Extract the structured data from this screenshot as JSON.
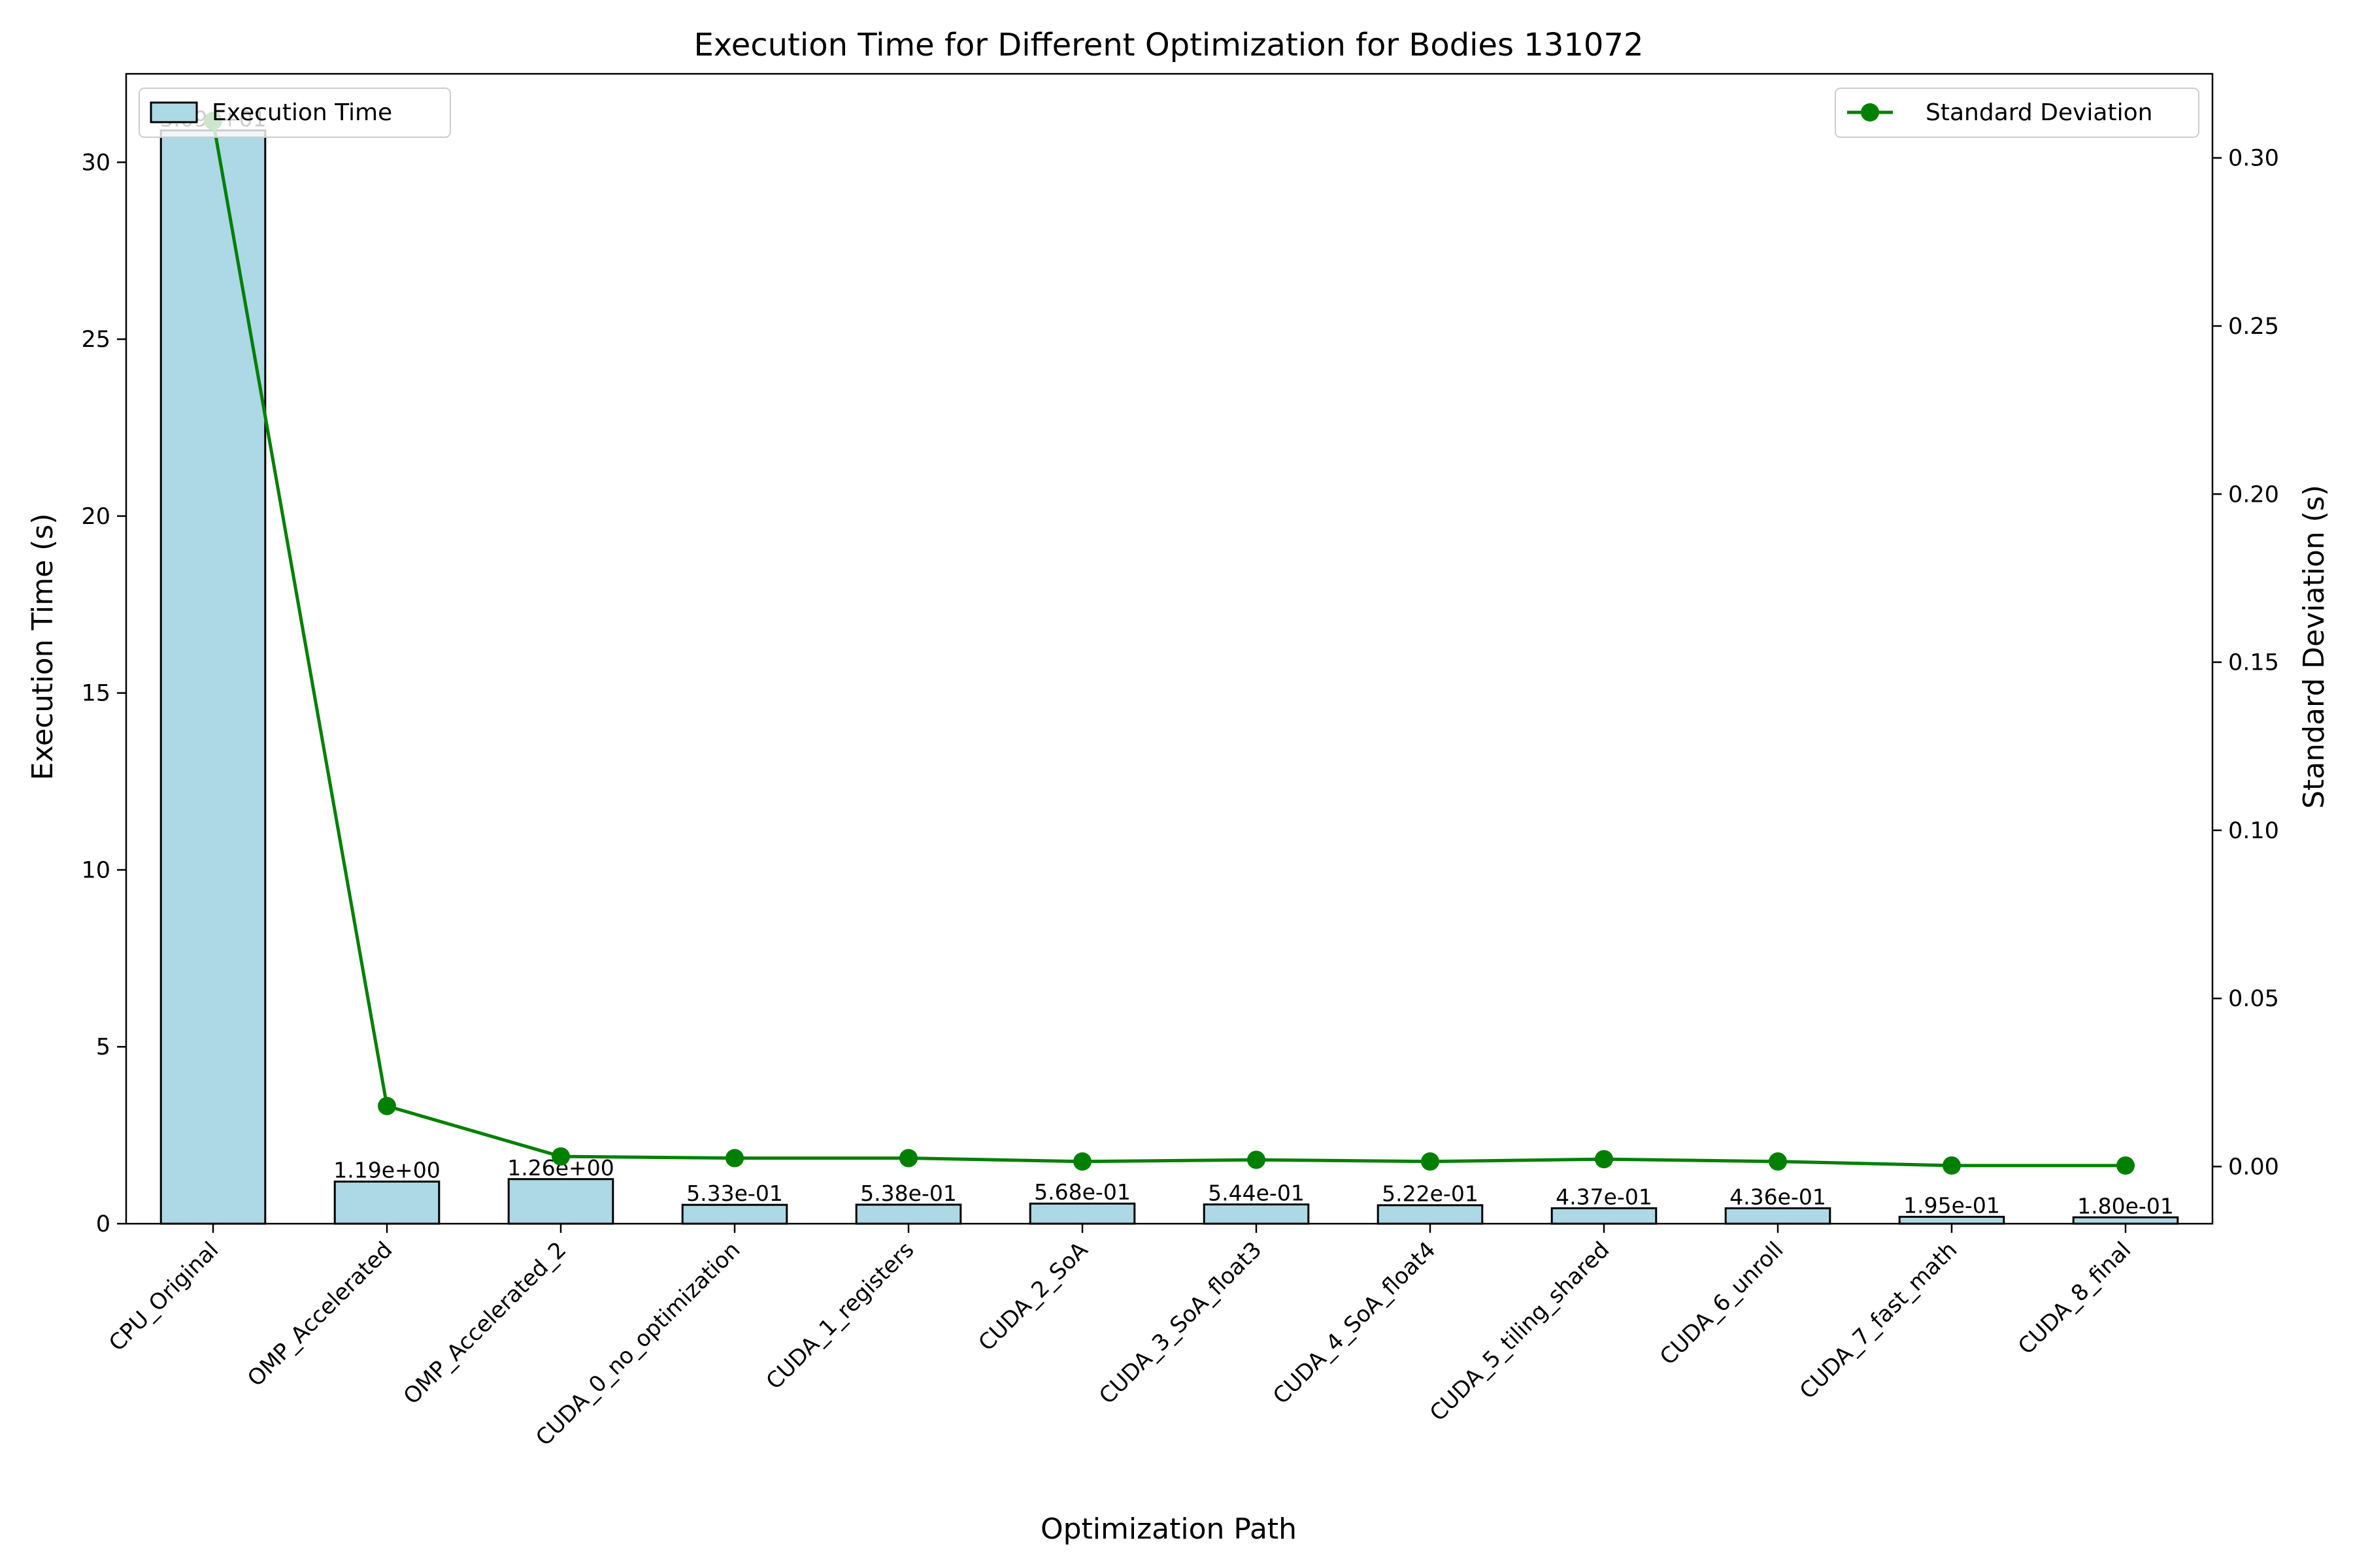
{
  "chart_data": {
    "type": "bar",
    "title": "Execution Time for Different Optimization for Bodies 131072",
    "xlabel": "Optimization Path",
    "ylabel": "Execution Time (s)",
    "y2label": "Standard Deviation (s)",
    "categories": [
      "CPU_Original",
      "OMP_Accelerated",
      "OMP_Accelerated_2",
      "CUDA_0_no_optimization",
      "CUDA_1_registers",
      "CUDA_2_SoA",
      "CUDA_3_SoA_float3",
      "CUDA_4_SoA_float4",
      "CUDA_5_tiling_shared",
      "CUDA_6_unroll",
      "CUDA_7_fast_math",
      "CUDA_8_final"
    ],
    "series": [
      {
        "name": "Execution Time",
        "type": "bar",
        "axis": "left",
        "values": [
          30.9,
          1.19,
          1.26,
          0.533,
          0.538,
          0.568,
          0.544,
          0.522,
          0.437,
          0.436,
          0.195,
          0.18
        ],
        "labels": [
          "3.09e+01",
          "1.19e+00",
          "1.26e+00",
          "5.33e-01",
          "5.38e-01",
          "5.68e-01",
          "5.44e-01",
          "5.22e-01",
          "4.37e-01",
          "4.36e-01",
          "1.95e-01",
          "1.80e-01"
        ],
        "color": "#add8e6",
        "edgecolor": "#000000"
      },
      {
        "name": "Standard Deviation",
        "type": "line",
        "axis": "right",
        "values": [
          0.311,
          0.018,
          0.003,
          0.0025,
          0.0025,
          0.0015,
          0.002,
          0.0015,
          0.0022,
          0.0015,
          0.0003,
          0.0003
        ],
        "color": "#008000"
      }
    ],
    "ylim": [
      0,
      32.5
    ],
    "yticks": [
      0,
      5,
      10,
      15,
      20,
      25,
      30
    ],
    "y2lim": [
      -0.017,
      0.325
    ],
    "y2ticks": [
      0.0,
      0.05,
      0.1,
      0.15,
      0.2,
      0.25,
      0.3
    ],
    "y2tick_labels": [
      "0.00",
      "0.05",
      "0.10",
      "0.15",
      "0.20",
      "0.25",
      "0.30"
    ],
    "grid": false,
    "legend": [
      {
        "series": "Execution Time",
        "placement": "top-left"
      },
      {
        "series": "Standard Deviation",
        "placement": "top-right"
      }
    ]
  }
}
